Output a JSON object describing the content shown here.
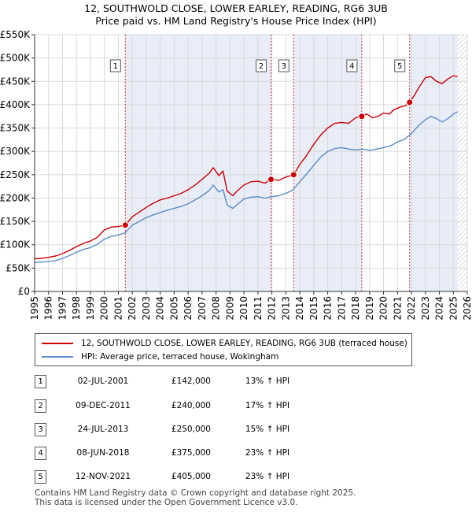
{
  "title_line1": "12, SOUTHWOLD CLOSE, LOWER EARLEY, READING, RG6 3UB",
  "title_line2": "Price paid vs. HM Land Registry's House Price Index (HPI)",
  "chart_data": {
    "type": "line",
    "title": "Price paid vs. HM Land Registry's House Price Index (HPI)",
    "xlabel": "",
    "ylabel": "",
    "xlim": [
      1995,
      2026
    ],
    "ylim": [
      0,
      550000
    ],
    "y_ticks": [
      {
        "value": 0,
        "label": "£0"
      },
      {
        "value": 50000,
        "label": "£50K"
      },
      {
        "value": 100000,
        "label": "£100K"
      },
      {
        "value": 150000,
        "label": "£150K"
      },
      {
        "value": 200000,
        "label": "£200K"
      },
      {
        "value": 250000,
        "label": "£250K"
      },
      {
        "value": 300000,
        "label": "£300K"
      },
      {
        "value": 350000,
        "label": "£350K"
      },
      {
        "value": 400000,
        "label": "£400K"
      },
      {
        "value": 450000,
        "label": "£450K"
      },
      {
        "value": 500000,
        "label": "£500K"
      },
      {
        "value": 550000,
        "label": "£550K"
      }
    ],
    "x_ticks": [
      "1995",
      "1996",
      "1997",
      "1998",
      "1999",
      "2000",
      "2001",
      "2002",
      "2003",
      "2004",
      "2005",
      "2006",
      "2007",
      "2008",
      "2009",
      "2010",
      "2011",
      "2012",
      "2013",
      "2014",
      "2015",
      "2016",
      "2017",
      "2018",
      "2019",
      "2020",
      "2021",
      "2022",
      "2023",
      "2024",
      "2025",
      "2026"
    ],
    "grid": true,
    "future_hatch_from": 2025.3,
    "series": [
      {
        "name": "12, SOUTHWOLD CLOSE, LOWER EARLEY, READING, RG6 3UB (terraced house)",
        "color": "#cc0000",
        "x": [
          1995.0,
          1995.5,
          1996.0,
          1996.5,
          1997.0,
          1997.5,
          1998.0,
          1998.5,
          1999.0,
          1999.5,
          2000.0,
          2000.5,
          2001.0,
          2001.5,
          2002.0,
          2002.5,
          2003.0,
          2003.5,
          2004.0,
          2004.5,
          2005.0,
          2005.5,
          2006.0,
          2006.5,
          2007.0,
          2007.5,
          2007.8,
          2008.2,
          2008.5,
          2008.8,
          2009.2,
          2009.5,
          2010.0,
          2010.5,
          2011.0,
          2011.5,
          2011.94,
          2012.5,
          2013.0,
          2013.56,
          2014.0,
          2014.5,
          2015.0,
          2015.5,
          2016.0,
          2016.5,
          2017.0,
          2017.5,
          2018.0,
          2018.44,
          2018.8,
          2019.2,
          2019.6,
          2020.0,
          2020.4,
          2020.8,
          2021.2,
          2021.6,
          2021.87,
          2022.2,
          2022.6,
          2023.0,
          2023.4,
          2023.8,
          2024.2,
          2024.6,
          2025.0,
          2025.3
        ],
        "values": [
          70000,
          71000,
          73000,
          76000,
          81000,
          88000,
          96000,
          103000,
          108000,
          116000,
          132000,
          138000,
          139000,
          142000,
          160000,
          170000,
          180000,
          189000,
          196000,
          200000,
          205000,
          210000,
          218000,
          228000,
          240000,
          253000,
          265000,
          248000,
          258000,
          215000,
          205000,
          215000,
          228000,
          235000,
          236000,
          232000,
          240000,
          238000,
          245000,
          250000,
          272000,
          292000,
          315000,
          335000,
          350000,
          360000,
          362000,
          360000,
          372000,
          375000,
          380000,
          372000,
          375000,
          382000,
          380000,
          390000,
          395000,
          398000,
          405000,
          420000,
          440000,
          458000,
          460000,
          450000,
          445000,
          455000,
          462000,
          460000
        ],
        "marker_points": [
          {
            "label": "1",
            "x": 2001.5,
            "value": 142000
          },
          {
            "label": "2",
            "x": 2011.94,
            "value": 240000
          },
          {
            "label": "3",
            "x": 2013.56,
            "value": 250000
          },
          {
            "label": "4",
            "x": 2018.44,
            "value": 375000
          },
          {
            "label": "5",
            "x": 2021.87,
            "value": 405000
          }
        ]
      },
      {
        "name": "HPI: Average price, terraced house, Wokingham",
        "color": "#5b8bc9",
        "x": [
          1995.0,
          1995.5,
          1996.0,
          1996.5,
          1997.0,
          1997.5,
          1998.0,
          1998.5,
          1999.0,
          1999.5,
          2000.0,
          2000.5,
          2001.0,
          2001.5,
          2002.0,
          2002.5,
          2003.0,
          2003.5,
          2004.0,
          2004.5,
          2005.0,
          2005.5,
          2006.0,
          2006.5,
          2007.0,
          2007.5,
          2007.8,
          2008.2,
          2008.5,
          2008.8,
          2009.2,
          2009.5,
          2010.0,
          2010.5,
          2011.0,
          2011.5,
          2012.0,
          2012.5,
          2013.0,
          2013.5,
          2014.0,
          2014.5,
          2015.0,
          2015.5,
          2016.0,
          2016.5,
          2017.0,
          2017.5,
          2018.0,
          2018.5,
          2019.0,
          2019.5,
          2020.0,
          2020.5,
          2021.0,
          2021.5,
          2022.0,
          2022.5,
          2023.0,
          2023.4,
          2023.8,
          2024.2,
          2024.6,
          2025.0,
          2025.3
        ],
        "values": [
          62000,
          63000,
          64000,
          66000,
          71000,
          77000,
          84000,
          90000,
          94000,
          101000,
          112000,
          118000,
          121000,
          126000,
          142000,
          150000,
          158000,
          164000,
          169000,
          174000,
          178000,
          182000,
          188000,
          196000,
          205000,
          216000,
          228000,
          213000,
          218000,
          185000,
          178000,
          186000,
          198000,
          202000,
          203000,
          200000,
          203000,
          205000,
          210000,
          217000,
          235000,
          252000,
          270000,
          288000,
          300000,
          306000,
          308000,
          305000,
          303000,
          305000,
          302000,
          305000,
          308000,
          312000,
          320000,
          326000,
          338000,
          355000,
          368000,
          375000,
          370000,
          363000,
          370000,
          380000,
          385000
        ]
      }
    ],
    "transaction_markers": [
      "1",
      "2",
      "3",
      "4",
      "5"
    ]
  },
  "legend": [
    {
      "label": "12, SOUTHWOLD CLOSE, LOWER EARLEY, READING, RG6 3UB (terraced house)",
      "color": "#cc0000"
    },
    {
      "label": "HPI: Average price, terraced house, Wokingham",
      "color": "#5b8bc9"
    }
  ],
  "transactions": [
    {
      "num": "1",
      "date": "02-JUL-2001",
      "price": "£142,000",
      "hpi": "13% ↑ HPI"
    },
    {
      "num": "2",
      "date": "09-DEC-2011",
      "price": "£240,000",
      "hpi": "17% ↑ HPI"
    },
    {
      "num": "3",
      "date": "24-JUL-2013",
      "price": "£250,000",
      "hpi": "15% ↑ HPI"
    },
    {
      "num": "4",
      "date": "08-JUN-2018",
      "price": "£375,000",
      "hpi": "23% ↑ HPI"
    },
    {
      "num": "5",
      "date": "12-NOV-2021",
      "price": "£405,000",
      "hpi": "23% ↑ HPI"
    }
  ],
  "footer_line1": "Contains HM Land Registry data © Crown copyright and database right 2025.",
  "footer_line2": "This data is licensed under the Open Government Licence v3.0."
}
